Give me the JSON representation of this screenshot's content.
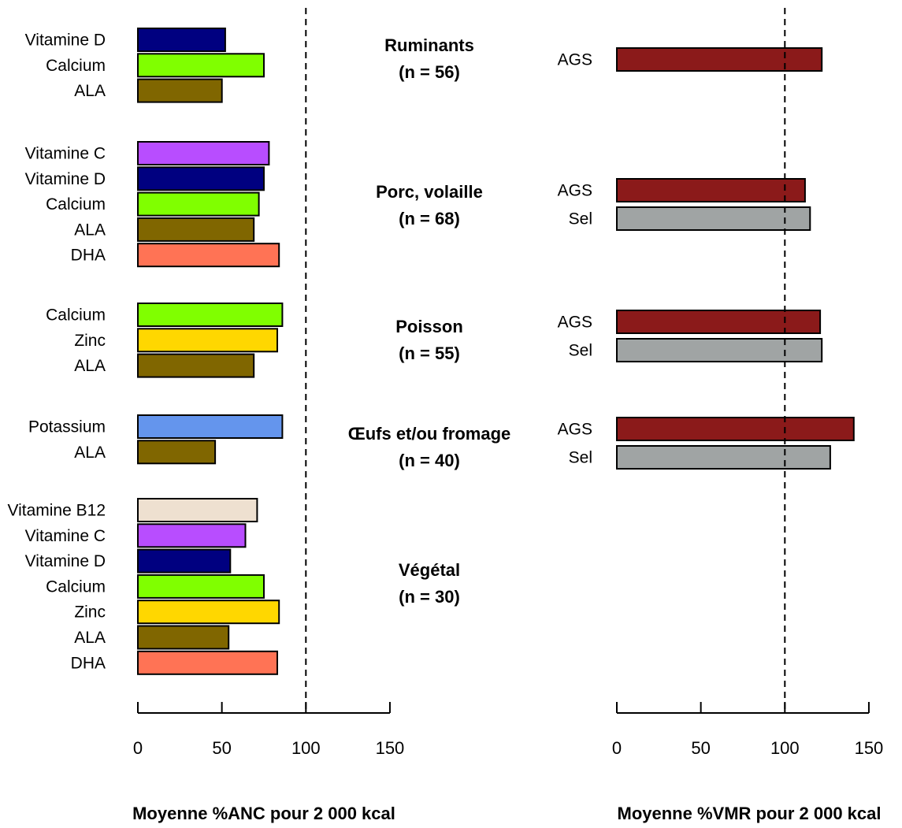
{
  "chart_data": [
    {
      "type": "bar",
      "orientation": "horizontal",
      "xlabel": "Moyenne %ANC pour 2 000 kcal",
      "xlim": [
        0,
        150
      ],
      "xticks": [
        0,
        50,
        100,
        150
      ],
      "reference_line": 100,
      "groups": [
        {
          "bars": [
            {
              "label": "Vitamine D",
              "value": 52,
              "color": "#000080"
            },
            {
              "label": "Calcium",
              "value": 75,
              "color": "#80ff00"
            },
            {
              "label": "ALA",
              "value": 50,
              "color": "#806600"
            }
          ]
        },
        {
          "bars": [
            {
              "label": "Vitamine C",
              "value": 78,
              "color": "#b84dff"
            },
            {
              "label": "Vitamine D",
              "value": 75,
              "color": "#000080"
            },
            {
              "label": "Calcium",
              "value": 72,
              "color": "#80ff00"
            },
            {
              "label": "ALA",
              "value": 69,
              "color": "#806600"
            },
            {
              "label": "DHA",
              "value": 84,
              "color": "#ff7355"
            }
          ]
        },
        {
          "bars": [
            {
              "label": "Calcium",
              "value": 86,
              "color": "#80ff00"
            },
            {
              "label": "Zinc",
              "value": 83,
              "color": "#ffd700"
            },
            {
              "label": "ALA",
              "value": 69,
              "color": "#806600"
            }
          ]
        },
        {
          "bars": [
            {
              "label": "Potassium",
              "value": 86,
              "color": "#6495ed"
            },
            {
              "label": "ALA",
              "value": 46,
              "color": "#806600"
            }
          ]
        },
        {
          "bars": [
            {
              "label": "Vitamine B12",
              "value": 71,
              "color": "#eee0d0"
            },
            {
              "label": "Vitamine C",
              "value": 64,
              "color": "#b84dff"
            },
            {
              "label": "Vitamine D",
              "value": 55,
              "color": "#000080"
            },
            {
              "label": "Calcium",
              "value": 75,
              "color": "#80ff00"
            },
            {
              "label": "Zinc",
              "value": 84,
              "color": "#ffd700"
            },
            {
              "label": "ALA",
              "value": 54,
              "color": "#806600"
            },
            {
              "label": "DHA",
              "value": 83,
              "color": "#ff7355"
            }
          ]
        }
      ]
    },
    {
      "type": "bar",
      "orientation": "horizontal",
      "xlabel": "Moyenne %VMR pour 2 000 kcal",
      "xlim": [
        0,
        150
      ],
      "xticks": [
        0,
        50,
        100,
        150
      ],
      "reference_line": 100,
      "groups": [
        {
          "bars": [
            {
              "label": "AGS",
              "value": 122,
              "color": "#8b1a1a"
            }
          ]
        },
        {
          "bars": [
            {
              "label": "AGS",
              "value": 112,
              "color": "#8b1a1a"
            },
            {
              "label": "Sel",
              "value": 115,
              "color": "#a0a4a4"
            }
          ]
        },
        {
          "bars": [
            {
              "label": "AGS",
              "value": 121,
              "color": "#8b1a1a"
            },
            {
              "label": "Sel",
              "value": 122,
              "color": "#a0a4a4"
            }
          ]
        },
        {
          "bars": [
            {
              "label": "AGS",
              "value": 141,
              "color": "#8b1a1a"
            },
            {
              "label": "Sel",
              "value": 127,
              "color": "#a0a4a4"
            }
          ]
        },
        {
          "bars": []
        }
      ]
    }
  ],
  "categories": [
    {
      "name": "Ruminants",
      "count": "(n = 56)"
    },
    {
      "name": "Porc, volaille",
      "count": "(n = 68)"
    },
    {
      "name": "Poisson",
      "count": "(n = 55)"
    },
    {
      "name": "Œufs et/ou fromage",
      "count": "(n = 40)"
    },
    {
      "name": "Végétal",
      "count": "(n = 30)"
    }
  ]
}
